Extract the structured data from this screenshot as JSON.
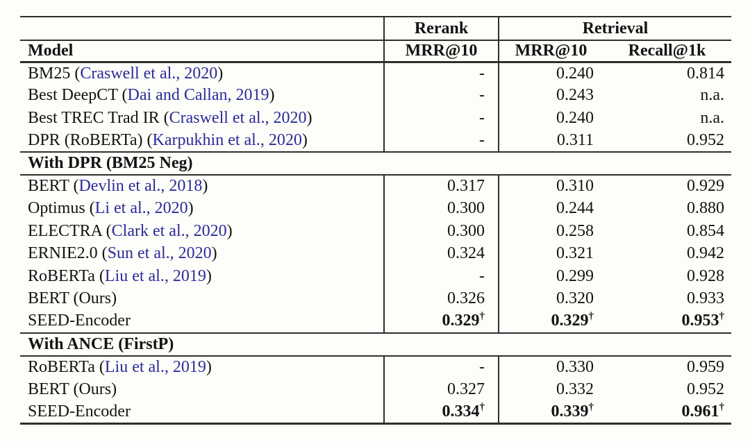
{
  "colors": {
    "citation_link": "#2b2b9b",
    "rule": "#2e2e2e",
    "text": "#131313",
    "background": "#fdfdf9"
  },
  "table": {
    "col_headers": {
      "group_rerank": "Rerank",
      "group_retrieval": "Retrieval",
      "model": "Model",
      "rerank_metric": "MRR@10",
      "retrieval_metric1": "MRR@10",
      "retrieval_metric2": "Recall@1k"
    },
    "sections": [
      {
        "title": "",
        "rows": [
          {
            "model_pre": "BM25 (",
            "model_cite": "Craswell et al., 2020",
            "model_post": ")",
            "rerank_mrr10": "-",
            "retrieval_mrr10": "0.240",
            "recall_1k": "0.814"
          },
          {
            "model_pre": "Best DeepCT (",
            "model_cite": "Dai and Callan, 2019",
            "model_post": ")",
            "rerank_mrr10": "-",
            "retrieval_mrr10": "0.243",
            "recall_1k": "n.a."
          },
          {
            "model_pre": "Best TREC Trad IR (",
            "model_cite": "Craswell et al., 2020",
            "model_post": ")",
            "rerank_mrr10": "-",
            "retrieval_mrr10": "0.240",
            "recall_1k": "n.a."
          },
          {
            "model_pre": "DPR (RoBERTa) (",
            "model_cite": "Karpukhin et al., 2020",
            "model_post": ")",
            "rerank_mrr10": "-",
            "retrieval_mrr10": "0.311",
            "recall_1k": "0.952"
          }
        ]
      },
      {
        "title": "With DPR (BM25 Neg)",
        "rows": [
          {
            "model_pre": "BERT (",
            "model_cite": "Devlin et al., 2018",
            "model_post": ")",
            "rerank_mrr10": "0.317",
            "retrieval_mrr10": "0.310",
            "recall_1k": "0.929"
          },
          {
            "model_pre": "Optimus (",
            "model_cite": "Li et al., 2020",
            "model_post": ")",
            "rerank_mrr10": "0.300",
            "retrieval_mrr10": "0.244",
            "recall_1k": "0.880"
          },
          {
            "model_pre": "ELECTRA (",
            "model_cite": "Clark et al., 2020",
            "model_post": ")",
            "rerank_mrr10": "0.300",
            "retrieval_mrr10": "0.258",
            "recall_1k": "0.854"
          },
          {
            "model_pre": "ERNIE2.0 (",
            "model_cite": "Sun et al., 2020",
            "model_post": ")",
            "rerank_mrr10": "0.324",
            "retrieval_mrr10": "0.321",
            "recall_1k": "0.942"
          },
          {
            "model_pre": "RoBERTa (",
            "model_cite": "Liu et al., 2019",
            "model_post": ")",
            "rerank_mrr10": "-",
            "retrieval_mrr10": "0.299",
            "recall_1k": "0.928"
          },
          {
            "model_pre": "BERT (Ours)",
            "model_cite": "",
            "model_post": "",
            "rerank_mrr10": "0.326",
            "retrieval_mrr10": "0.320",
            "recall_1k": "0.933"
          },
          {
            "model_pre": "SEED-Encoder",
            "model_cite": "",
            "model_post": "",
            "rerank_mrr10": "0.329",
            "retrieval_mrr10": "0.329",
            "recall_1k": "0.953",
            "dagger": "†",
            "emphasis": true
          }
        ]
      },
      {
        "title": "With ANCE (FirstP)",
        "rows": [
          {
            "model_pre": "RoBERTa (",
            "model_cite": "Liu et al., 2019",
            "model_post": ")",
            "rerank_mrr10": "-",
            "retrieval_mrr10": "0.330",
            "recall_1k": "0.959"
          },
          {
            "model_pre": "BERT (Ours)",
            "model_cite": "",
            "model_post": "",
            "rerank_mrr10": "0.327",
            "retrieval_mrr10": "0.332",
            "recall_1k": "0.952"
          },
          {
            "model_pre": "SEED-Encoder",
            "model_cite": "",
            "model_post": "",
            "rerank_mrr10": "0.334",
            "retrieval_mrr10": "0.339",
            "recall_1k": "0.961",
            "dagger": "†",
            "emphasis": true
          }
        ]
      }
    ]
  }
}
